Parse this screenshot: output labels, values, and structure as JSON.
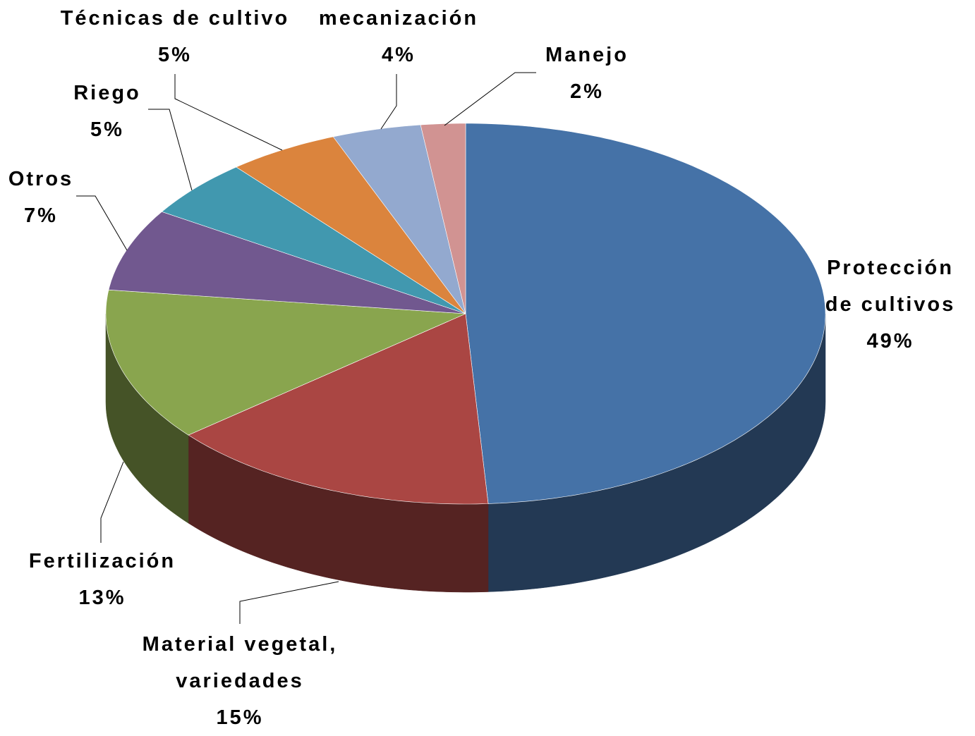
{
  "chart_data": {
    "type": "pie3d",
    "categories": [
      "Protección de cultivos",
      "Material vegetal, variedades",
      "Fertilización",
      "Otros",
      "Riego",
      "Técnicas de cultivo",
      "mecanización",
      "Manejo"
    ],
    "values": [
      49,
      15,
      13,
      7,
      5,
      5,
      4,
      2
    ],
    "value_labels": [
      "49%",
      "15%",
      "13%",
      "7%",
      "5%",
      "5%",
      "4%",
      "2%"
    ],
    "colors": [
      "#4572a7",
      "#aa4643",
      "#89a54e",
      "#71588f",
      "#4198af",
      "#db843d",
      "#93a9cf",
      "#d19392"
    ]
  }
}
